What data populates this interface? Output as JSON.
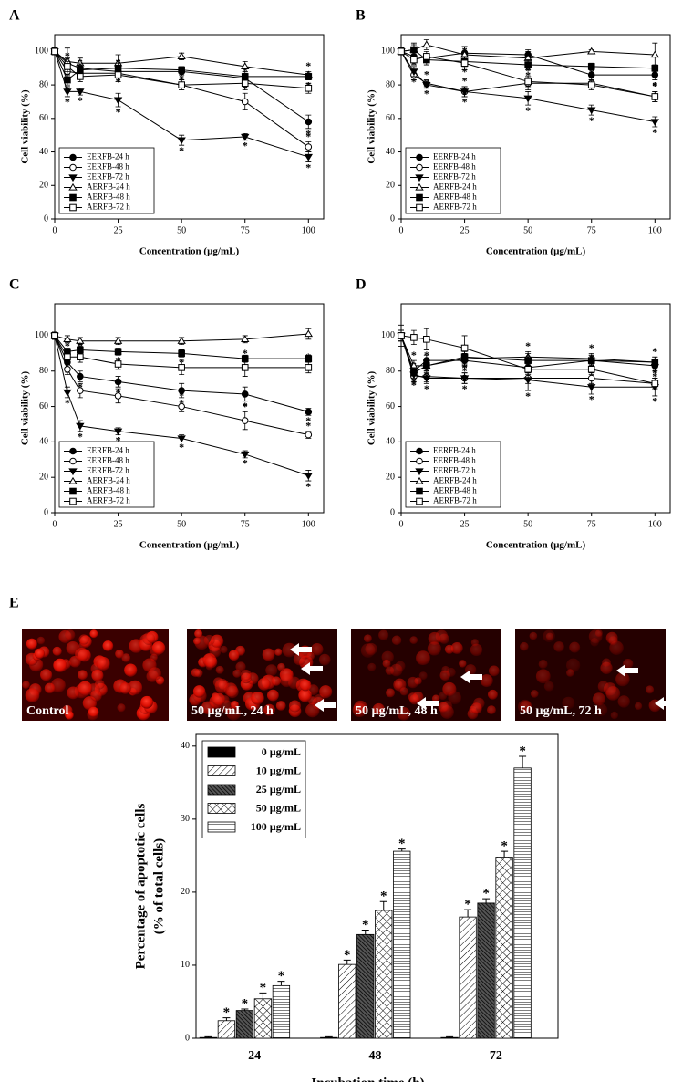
{
  "chart_data": [
    {
      "type": "line",
      "panel": "A",
      "xlabel": "Concentration (µg/mL)",
      "ylabel": "Cell viability (%)",
      "x": [
        0,
        5,
        10,
        25,
        50,
        75,
        100
      ],
      "xlim": [
        0,
        106
      ],
      "xticks": [
        0,
        25,
        50,
        75,
        100
      ],
      "ylim": [
        0,
        110
      ],
      "yticks": [
        0,
        20,
        40,
        60,
        80,
        100
      ],
      "legend": "lower left",
      "series": [
        {
          "name": "EERFB-24 h",
          "marker": "circle",
          "filled": true,
          "values": [
            100,
            93,
            90,
            88,
            88,
            84,
            58
          ],
          "errors": [
            2,
            3,
            2,
            3,
            2,
            3,
            4
          ],
          "value_labels": [
            null,
            "*",
            "*",
            "*",
            "*",
            "*",
            "*"
          ]
        },
        {
          "name": "EERFB-48 h",
          "marker": "circle",
          "filled": false,
          "values": [
            100,
            88,
            87,
            87,
            80,
            70,
            43
          ],
          "errors": [
            2,
            3,
            3,
            3,
            3,
            5,
            3
          ],
          "value_labels": [
            null,
            "*",
            "*",
            "*",
            "*",
            "*",
            "*"
          ]
        },
        {
          "name": "EERFB-72 h",
          "marker": "tri-down",
          "filled": true,
          "values": [
            100,
            76,
            76,
            71,
            47,
            49,
            37
          ],
          "errors": [
            2,
            3,
            2,
            4,
            3,
            2,
            3
          ],
          "value_labels": [
            null,
            "*",
            "*",
            "*",
            "*",
            "*",
            "*"
          ]
        },
        {
          "name": "AERFB-24 h",
          "marker": "tri-up",
          "filled": false,
          "values": [
            100,
            94,
            93,
            93,
            97,
            91,
            86
          ],
          "errors": [
            2,
            8,
            3,
            5,
            2,
            3,
            2
          ],
          "value_labels": [
            null,
            null,
            null,
            null,
            null,
            null,
            "*"
          ]
        },
        {
          "name": "AERFB-48 h",
          "marker": "square",
          "filled": true,
          "values": [
            100,
            83,
            89,
            90,
            89,
            85,
            85
          ],
          "errors": [
            2,
            3,
            2,
            3,
            2,
            3,
            2
          ],
          "value_labels": [
            null,
            "*",
            "*",
            "*",
            "*",
            "*",
            "*"
          ]
        },
        {
          "name": "AERFB-72 h",
          "marker": "square",
          "filled": false,
          "values": [
            100,
            91,
            85,
            86,
            80,
            81,
            78
          ],
          "errors": [
            2,
            3,
            3,
            4,
            3,
            4,
            3
          ],
          "value_labels": [
            null,
            "*",
            "*",
            "*",
            "*",
            "*",
            "*"
          ]
        }
      ]
    },
    {
      "type": "line",
      "panel": "B",
      "xlabel": "Concentration (µg/mL)",
      "ylabel": "Cell viability (%)",
      "x": [
        0,
        5,
        10,
        25,
        50,
        75,
        100
      ],
      "xlim": [
        0,
        106
      ],
      "xticks": [
        0,
        25,
        50,
        75,
        100
      ],
      "ylim": [
        0,
        110
      ],
      "yticks": [
        0,
        20,
        40,
        60,
        80,
        100
      ],
      "legend": "lower left",
      "series": [
        {
          "name": "EERFB-24 h",
          "marker": "circle",
          "filled": true,
          "values": [
            100,
            97,
            96,
            99,
            98,
            86,
            86
          ],
          "errors": [
            2,
            3,
            2,
            4,
            3,
            3,
            3
          ],
          "value_labels": [
            null,
            null,
            null,
            null,
            null,
            "*",
            "*"
          ]
        },
        {
          "name": "EERFB-48 h",
          "marker": "circle",
          "filled": false,
          "values": [
            100,
            86,
            81,
            76,
            81,
            81,
            73
          ],
          "errors": [
            2,
            3,
            2,
            3,
            4,
            3,
            3
          ],
          "value_labels": [
            null,
            "*",
            "*",
            "*",
            "*",
            "*",
            "*"
          ]
        },
        {
          "name": "EERFB-72 h",
          "marker": "tri-down",
          "filled": true,
          "values": [
            100,
            88,
            80,
            76,
            72,
            65,
            58
          ],
          "errors": [
            2,
            3,
            2,
            3,
            4,
            3,
            3
          ],
          "value_labels": [
            null,
            "*",
            "*",
            "*",
            "*",
            "*",
            "*"
          ]
        },
        {
          "name": "AERFB-24 h",
          "marker": "tri-up",
          "filled": false,
          "values": [
            100,
            101,
            104,
            98,
            96,
            100,
            98
          ],
          "errors": [
            2,
            3,
            3,
            5,
            4,
            1,
            7
          ],
          "value_labels": [
            null,
            null,
            null,
            null,
            null,
            null,
            null
          ]
        },
        {
          "name": "AERFB-48 h",
          "marker": "square",
          "filled": true,
          "values": [
            100,
            101,
            95,
            94,
            92,
            91,
            90
          ],
          "errors": [
            2,
            4,
            3,
            3,
            3,
            2,
            2
          ],
          "value_labels": [
            null,
            null,
            null,
            "*",
            "*",
            "*",
            "*"
          ]
        },
        {
          "name": "AERFB-72 h",
          "marker": "square",
          "filled": false,
          "values": [
            100,
            95,
            97,
            93,
            82,
            80,
            73
          ],
          "errors": [
            2,
            3,
            3,
            4,
            3,
            3,
            3
          ],
          "value_labels": [
            null,
            null,
            null,
            "*",
            "*",
            "*",
            "*"
          ]
        }
      ]
    },
    {
      "type": "line",
      "panel": "C",
      "xlabel": "Concentration (µg/mL)",
      "ylabel": "Cell viability (%)",
      "x": [
        0,
        5,
        10,
        25,
        50,
        75,
        100
      ],
      "xlim": [
        0,
        106
      ],
      "xticks": [
        0,
        25,
        50,
        75,
        100
      ],
      "ylim": [
        0,
        118
      ],
      "yticks": [
        0,
        20,
        40,
        60,
        80,
        100
      ],
      "legend": "lower left",
      "series": [
        {
          "name": "EERFB-24 h",
          "marker": "circle",
          "filled": true,
          "values": [
            100,
            85,
            77,
            74,
            69,
            67,
            57
          ],
          "errors": [
            2,
            3,
            3,
            3,
            4,
            4,
            2
          ],
          "value_labels": [
            null,
            "*",
            "*",
            "*",
            "*",
            "*",
            "*"
          ]
        },
        {
          "name": "EERFB-48 h",
          "marker": "circle",
          "filled": false,
          "values": [
            100,
            81,
            69,
            66,
            60,
            52,
            44
          ],
          "errors": [
            2,
            3,
            4,
            4,
            3,
            5,
            2
          ],
          "value_labels": [
            null,
            "*",
            "*",
            "*",
            "*",
            "*",
            "*"
          ]
        },
        {
          "name": "EERFB-72 h",
          "marker": "tri-down",
          "filled": true,
          "values": [
            100,
            68,
            49,
            46,
            42,
            33,
            21
          ],
          "errors": [
            2,
            3,
            3,
            2,
            2,
            2,
            3
          ],
          "value_labels": [
            null,
            "*",
            "*",
            "*",
            "*",
            "*",
            "*"
          ]
        },
        {
          "name": "AERFB-24 h",
          "marker": "tri-up",
          "filled": false,
          "values": [
            100,
            98,
            97,
            97,
            97,
            98,
            101
          ],
          "errors": [
            2,
            2,
            2,
            2,
            2,
            2,
            3
          ],
          "value_labels": [
            null,
            null,
            null,
            null,
            null,
            null,
            null
          ]
        },
        {
          "name": "AERFB-48 h",
          "marker": "square",
          "filled": true,
          "values": [
            100,
            91,
            92,
            91,
            90,
            87,
            87
          ],
          "errors": [
            2,
            2,
            2,
            2,
            2,
            2,
            2
          ],
          "value_labels": [
            null,
            "*",
            "*",
            "*",
            "*",
            "*",
            "*"
          ]
        },
        {
          "name": "AERFB-72 h",
          "marker": "square",
          "filled": false,
          "values": [
            100,
            88,
            88,
            84,
            82,
            82,
            82
          ],
          "errors": [
            2,
            3,
            3,
            3,
            4,
            5,
            3
          ],
          "value_labels": [
            null,
            "*",
            "*",
            "*",
            "*",
            "*",
            "*"
          ]
        }
      ]
    },
    {
      "type": "line",
      "panel": "D",
      "xlabel": "Concentration (µg/mL)",
      "ylabel": "Cell viability (%)",
      "x": [
        0,
        5,
        10,
        25,
        50,
        75,
        100
      ],
      "xlim": [
        0,
        106
      ],
      "xticks": [
        0,
        25,
        50,
        75,
        100
      ],
      "ylim": [
        0,
        118
      ],
      "yticks": [
        0,
        20,
        40,
        60,
        80,
        100
      ],
      "legend": "lower left",
      "series": [
        {
          "name": "EERFB-24 h",
          "marker": "circle",
          "filled": true,
          "values": [
            100,
            80,
            86,
            86,
            82,
            86,
            83
          ],
          "errors": [
            3,
            3,
            3,
            3,
            3,
            3,
            3
          ],
          "value_labels": [
            null,
            "*",
            "*",
            "*",
            "*",
            "*",
            "*"
          ]
        },
        {
          "name": "EERFB-48 h",
          "marker": "circle",
          "filled": false,
          "values": [
            100,
            77,
            77,
            76,
            76,
            76,
            73
          ],
          "errors": [
            3,
            3,
            3,
            3,
            3,
            3,
            3
          ],
          "value_labels": [
            null,
            "*",
            "*",
            "*",
            "*",
            "*",
            "*"
          ]
        },
        {
          "name": "EERFB-72 h",
          "marker": "tri-down",
          "filled": true,
          "values": [
            100,
            78,
            76,
            76,
            75,
            71,
            71
          ],
          "errors": [
            3,
            3,
            3,
            3,
            6,
            4,
            5
          ],
          "value_labels": [
            null,
            "*",
            "*",
            "*",
            "*",
            "*",
            "*"
          ]
        },
        {
          "name": "AERFB-24 h",
          "marker": "tri-up",
          "filled": false,
          "values": [
            100,
            83,
            83,
            87,
            88,
            87,
            85
          ],
          "errors": [
            3,
            3,
            3,
            3,
            3,
            3,
            3
          ],
          "value_labels": [
            null,
            "*",
            "*",
            "*",
            "*",
            "*",
            "*"
          ]
        },
        {
          "name": "AERFB-48 h",
          "marker": "square",
          "filled": true,
          "values": [
            100,
            79,
            83,
            88,
            86,
            86,
            85
          ],
          "errors": [
            3,
            3,
            3,
            3,
            4,
            3,
            3
          ],
          "value_labels": [
            null,
            "*",
            "*",
            "*",
            "*",
            "*",
            "*"
          ]
        },
        {
          "name": "AERFB-72 h",
          "marker": "square",
          "filled": false,
          "values": [
            100,
            99,
            98,
            93,
            81,
            81,
            73
          ],
          "errors": [
            6,
            4,
            6,
            7,
            3,
            3,
            3
          ],
          "value_labels": [
            null,
            null,
            null,
            null,
            "*",
            "*",
            "*"
          ]
        }
      ]
    },
    {
      "type": "bar",
      "panel": "E",
      "xlabel": "Incubation time (h)",
      "ylabel": "Percentage of apoptotic cells",
      "ylabel2": "(% of total cells)",
      "categories": [
        "24",
        "48",
        "72"
      ],
      "ylim": [
        0,
        41.6
      ],
      "yticks": [
        0,
        10,
        20,
        30,
        40
      ],
      "legend": "upper left",
      "series": [
        {
          "name": "0 µg/mL",
          "pattern": "solid",
          "values": [
            0.1,
            0.1,
            0.1
          ],
          "errors": [
            0.1,
            0.1,
            0.1
          ],
          "value_labels": [
            null,
            null,
            null
          ]
        },
        {
          "name": "10 µg/mL",
          "pattern": "diagonal",
          "values": [
            2.4,
            10.1,
            16.6
          ],
          "errors": [
            0.4,
            0.6,
            1.0
          ],
          "value_labels": [
            "*",
            "*",
            "*"
          ]
        },
        {
          "name": "25 µg/mL",
          "pattern": "dark-hatch",
          "values": [
            3.8,
            14.2,
            18.5
          ],
          "errors": [
            0.2,
            0.6,
            0.6
          ],
          "value_labels": [
            "*",
            "*",
            "*"
          ]
        },
        {
          "name": "50 µg/mL",
          "pattern": "cross",
          "values": [
            5.4,
            17.5,
            24.8
          ],
          "errors": [
            0.8,
            1.2,
            0.8
          ],
          "value_labels": [
            "*",
            "*",
            "*"
          ]
        },
        {
          "name": "100 µg/mL",
          "pattern": "horizontal",
          "values": [
            7.2,
            25.6,
            37.0
          ],
          "errors": [
            0.6,
            0.3,
            1.6
          ],
          "value_labels": [
            "*",
            "*",
            "*"
          ]
        }
      ]
    }
  ],
  "image_labels": [
    "Control",
    "50 µg/mL, 24 h",
    "50 µg/mL, 48 h",
    "50 µg/mL, 72 h"
  ]
}
